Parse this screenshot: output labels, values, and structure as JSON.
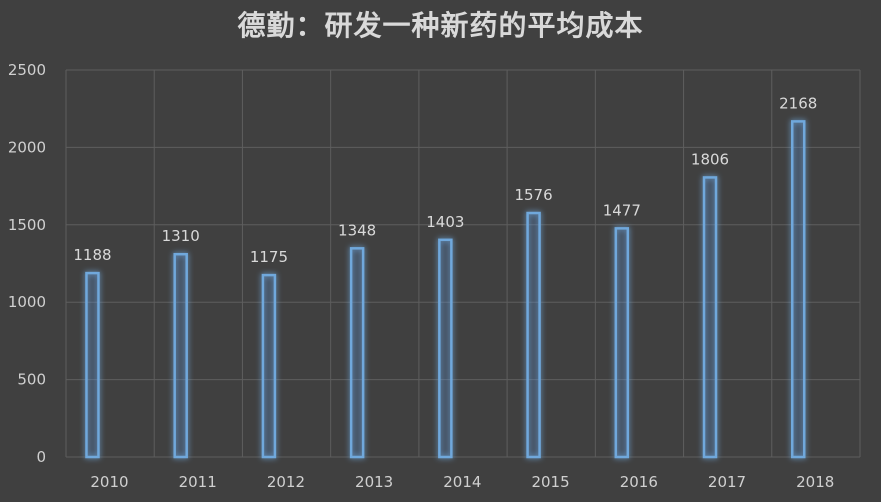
{
  "chart_data": {
    "type": "bar",
    "title": "德勤：研发一种新药的平均成本",
    "categories": [
      "2010",
      "2011",
      "2012",
      "2013",
      "2014",
      "2015",
      "2016",
      "2017",
      "2018"
    ],
    "values": [
      1188,
      1310,
      1175,
      1348,
      1403,
      1576,
      1477,
      1806,
      2168
    ],
    "ylim": [
      0,
      2500
    ],
    "yticks": [
      0,
      500,
      1000,
      1500,
      2000,
      2500
    ],
    "grid": true,
    "legend": "none",
    "colors": {
      "background": "#404040",
      "grid": "#5e5e5e",
      "bar_stroke": "#6fa8dc",
      "bar_glow": "#3d7fc4",
      "text": "#d9d9d9"
    }
  }
}
